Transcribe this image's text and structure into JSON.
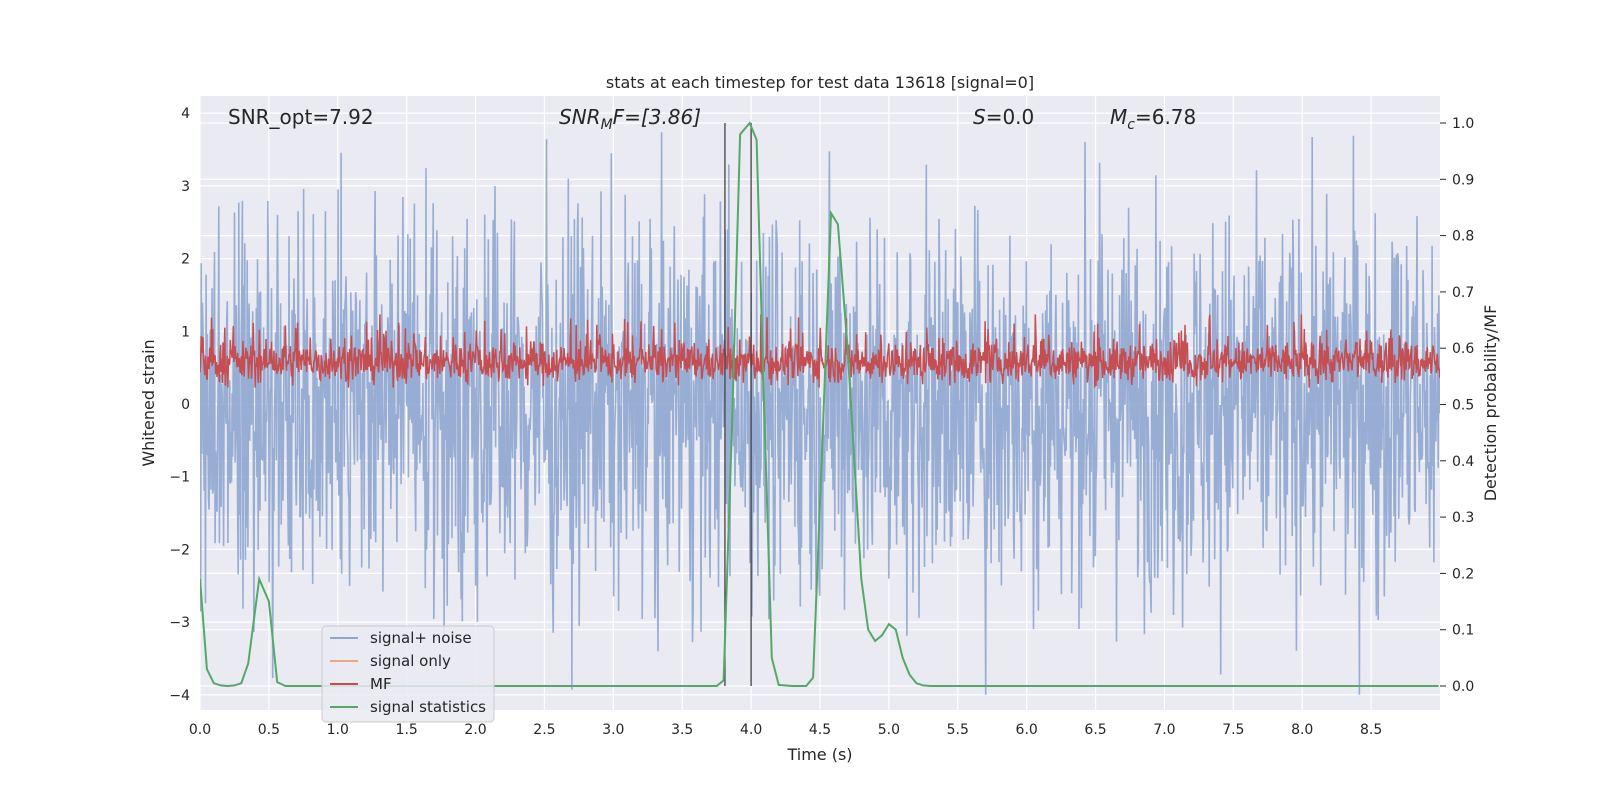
{
  "chart_data": {
    "type": "line",
    "title": "stats at each timestep for test data 13618 [signal=0]",
    "xlabel": "Time (s)",
    "ylabel_left": "Whitened strain",
    "ylabel_right": "Detection probability/MF",
    "xlim": [
      0.0,
      9.0
    ],
    "ylim_left": [
      -4.4,
      4.1
    ],
    "ylim_right": [
      -0.05,
      1.03
    ],
    "xticks": [
      "0.0",
      "0.5",
      "1.0",
      "1.5",
      "2.0",
      "2.5",
      "3.0",
      "3.5",
      "4.0",
      "4.5",
      "5.0",
      "5.5",
      "6.0",
      "6.5",
      "7.0",
      "7.5",
      "8.0",
      "8.5"
    ],
    "yticks_left": [
      "−4",
      "−3",
      "−2",
      "−1",
      "0",
      "1",
      "2",
      "3",
      "4"
    ],
    "yticks_right": [
      "0.0",
      "0.1",
      "0.2",
      "0.3",
      "0.4",
      "0.5",
      "0.6",
      "0.7",
      "0.8",
      "0.9",
      "1.0"
    ],
    "grid": true,
    "legend_position": "lower-left",
    "annotations": {
      "snr_opt": "SNR_opt=7.92",
      "snr_mf_base": "SNR",
      "snr_mf_sub": "M",
      "snr_mf_rest": "F=[3.86]",
      "s_var": "S",
      "s_rest": "=0.0",
      "mc_var": "M",
      "mc_sub": "c",
      "mc_rest": "=6.78"
    },
    "vlines_x": [
      3.81,
      4.0
    ],
    "series": [
      {
        "name": "signal+ noise",
        "color": "#8fa6cf",
        "axis": "left",
        "description_stats": {
          "n_samples": 2048,
          "amplitude_typical": 1.3,
          "min": -4.0,
          "max": 3.8
        }
      },
      {
        "name": "signal only",
        "color": "#e8a88b",
        "axis": "left",
        "values": []
      },
      {
        "name": "MF",
        "color": "#c44e52",
        "axis": "right",
        "description_stats": {
          "n_samples": 2048,
          "min": 0.53,
          "max": 0.66
        }
      },
      {
        "name": "signal statistics",
        "color": "#55a868",
        "axis": "right",
        "x": [
          0.0,
          0.05,
          0.1,
          0.15,
          0.2,
          0.25,
          0.3,
          0.35,
          0.43,
          0.5,
          0.56,
          0.62,
          0.7,
          0.8,
          1.0,
          1.5,
          2.0,
          2.5,
          3.0,
          3.5,
          3.75,
          3.8,
          3.86,
          3.92,
          3.99,
          4.04,
          4.1,
          4.15,
          4.2,
          4.3,
          4.4,
          4.45,
          4.52,
          4.58,
          4.63,
          4.7,
          4.8,
          4.85,
          4.9,
          4.95,
          5.0,
          5.05,
          5.1,
          5.15,
          5.2,
          5.25,
          5.3,
          5.4,
          5.6,
          6.0,
          7.0,
          8.0,
          8.99
        ],
        "y": [
          0.19,
          0.03,
          0.005,
          0.001,
          0.0,
          0.001,
          0.005,
          0.04,
          0.19,
          0.15,
          0.007,
          0.0,
          0.0,
          0.0,
          0.0,
          0.0,
          0.0,
          0.0,
          0.0,
          0.0,
          0.0,
          0.01,
          0.45,
          0.98,
          1.0,
          0.97,
          0.45,
          0.05,
          0.002,
          0.0,
          0.0,
          0.015,
          0.45,
          0.84,
          0.82,
          0.6,
          0.19,
          0.1,
          0.08,
          0.09,
          0.11,
          0.1,
          0.05,
          0.02,
          0.005,
          0.001,
          0.0,
          0.0,
          0.0,
          0.0,
          0.0,
          0.0,
          0.0
        ]
      }
    ]
  }
}
